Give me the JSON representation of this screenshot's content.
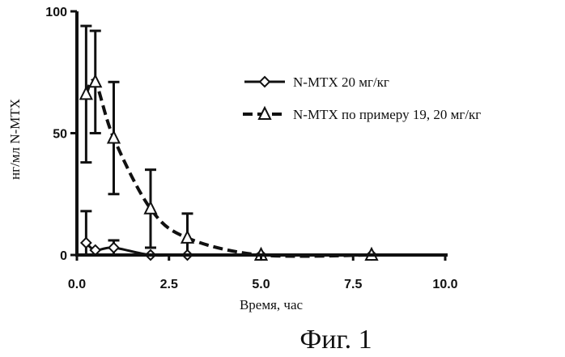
{
  "chart_data": {
    "type": "line",
    "xlabel": "Время, час",
    "ylabel": "нг/мл N-MTX",
    "xlim": [
      0,
      10
    ],
    "ylim": [
      0,
      100
    ],
    "xticks": [
      "0.0",
      "2.5",
      "5.0",
      "7.5",
      "10.0"
    ],
    "yticks": [
      "0",
      "50",
      "100"
    ],
    "legend_position": "top-right",
    "series": [
      {
        "name": "N-MTX 20 мг/кг",
        "marker": "diamond",
        "line": "solid",
        "x": [
          0.25,
          0.5,
          1,
          2,
          3,
          5,
          8
        ],
        "y": [
          5,
          2,
          3,
          0,
          0,
          0,
          0
        ],
        "err": [
          13,
          0,
          3,
          0,
          0,
          0,
          0
        ]
      },
      {
        "name": "N-MTX по примеру 19, 20 мг/кг",
        "marker": "triangle",
        "line": "dashed",
        "x": [
          0.25,
          0.5,
          1,
          2,
          3,
          5,
          8
        ],
        "y": [
          66,
          71,
          48,
          19,
          7,
          0,
          0
        ],
        "err": [
          28,
          21,
          23,
          16,
          10,
          0,
          0
        ]
      }
    ]
  },
  "caption": "Фиг. 1"
}
